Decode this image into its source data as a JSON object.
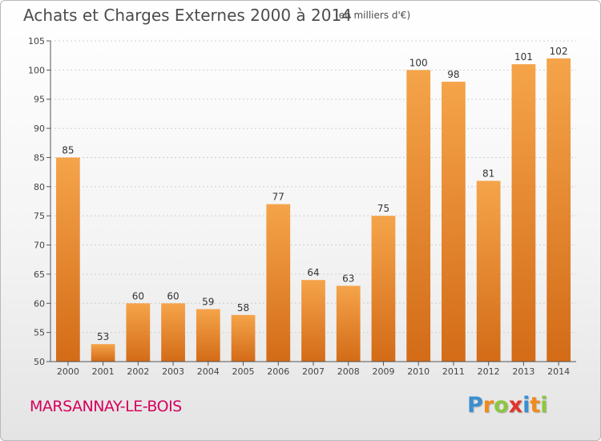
{
  "title": "Achats et Charges Externes 2000 à 2014",
  "subtitle": "(en milliers d'€)",
  "commune": "MARSANNAY-LE-BOIS",
  "logo": {
    "letters": [
      "P",
      "r",
      "o",
      "x",
      "i",
      "t",
      "i"
    ],
    "colors": [
      "#3a8fd0",
      "#f08a1c",
      "#8dc63f",
      "#e2342b",
      "#3a8fd0",
      "#f08a1c",
      "#8dc63f"
    ]
  },
  "colors": {
    "bar_light": "#f5a44a",
    "bar_dark": "#d36b17",
    "title": "#4d4d4d",
    "commune": "#d6005d"
  },
  "chart_data": {
    "type": "bar",
    "categories": [
      "2000",
      "2001",
      "2002",
      "2003",
      "2004",
      "2005",
      "2006",
      "2007",
      "2008",
      "2009",
      "2010",
      "2011",
      "2012",
      "2013",
      "2014"
    ],
    "values": [
      85,
      53,
      60,
      60,
      59,
      58,
      77,
      64,
      63,
      75,
      100,
      98,
      81,
      101,
      102
    ],
    "ylim": [
      50,
      105
    ],
    "yticks": [
      50,
      55,
      60,
      65,
      70,
      75,
      80,
      85,
      90,
      95,
      100,
      105
    ],
    "grid": true,
    "legend": "none",
    "xlabel": "",
    "ylabel": ""
  }
}
